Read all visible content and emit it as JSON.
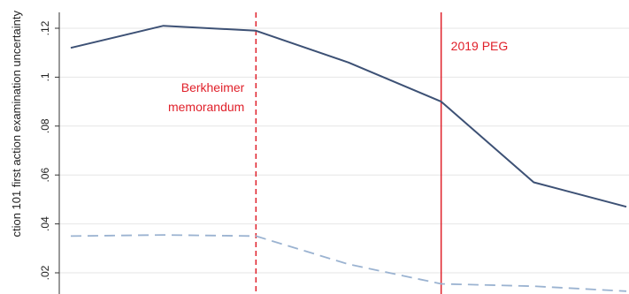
{
  "chart_data": {
    "type": "line",
    "ylabel": "ction 101 first action examination uncertainty",
    "ylim": [
      0.01,
      0.135
    ],
    "y_ticks": [
      ".02",
      ".04",
      ".06",
      ".08",
      ".1",
      ".12"
    ],
    "y_tick_values": [
      0.02,
      0.04,
      0.06,
      0.08,
      0.1,
      0.12
    ],
    "xlim": [
      2015,
      2021
    ],
    "grid": true,
    "series": [
      {
        "name": "",
        "style": "solid",
        "color": "#3d5175",
        "x": [
          2015,
          2016,
          2017,
          2018,
          2019,
          2020,
          2021
        ],
        "values": [
          0.112,
          0.121,
          0.119,
          0.106,
          0.09,
          0.057,
          0.047
        ]
      },
      {
        "name": "",
        "style": "dashed",
        "color": "#9bb3d1",
        "x": [
          2015,
          2016,
          2017,
          2018,
          2019,
          2020,
          2021
        ],
        "values": [
          0.035,
          0.0355,
          0.035,
          0.0235,
          0.0155,
          0.0145,
          0.0125
        ]
      }
    ],
    "annotations": [
      {
        "x": 2017,
        "style": "dashed",
        "color": "#e0202a",
        "label_lines": [
          "Berkheimer",
          "memorandum"
        ],
        "align": "end"
      },
      {
        "x": 2019,
        "style": "solid",
        "color": "#e0202a",
        "label_lines": [
          "2019 PEG"
        ],
        "align": "start"
      }
    ]
  }
}
